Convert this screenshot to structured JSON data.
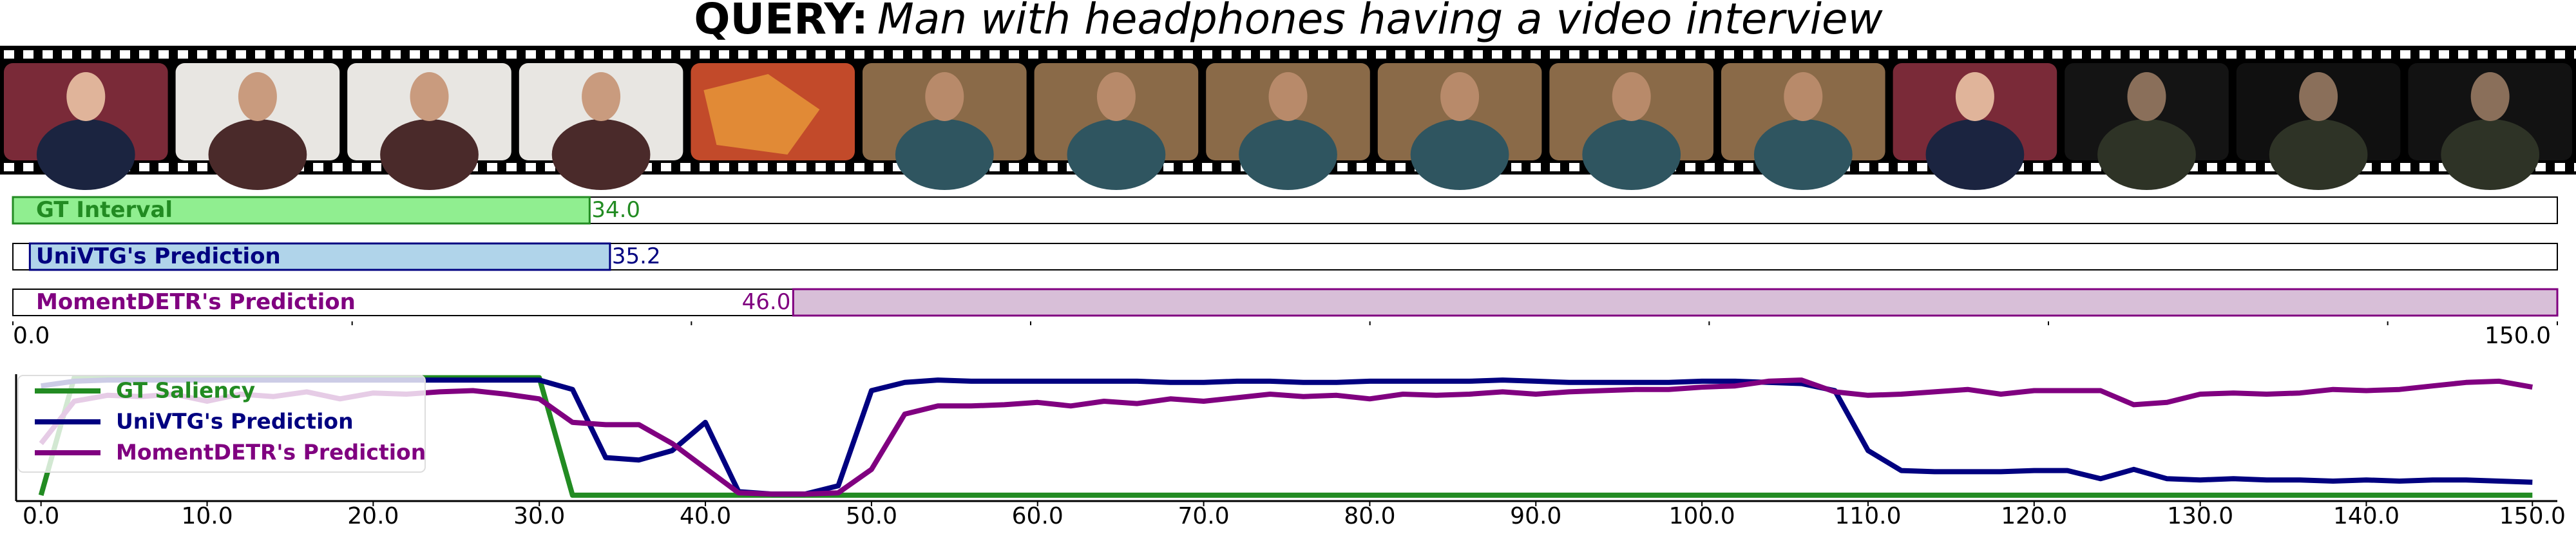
{
  "query": {
    "label": "QUERY:",
    "text": "Man with headphones having a video interview"
  },
  "chart_data": [
    {
      "type": "interval",
      "xlim": [
        0,
        150
      ],
      "xticks": [
        {
          "value": 0,
          "label": "0.0"
        },
        {
          "value": 150,
          "label": "150.0"
        }
      ],
      "minor_xticks": [
        20,
        40,
        60,
        80,
        100,
        120,
        140
      ],
      "series": [
        {
          "name": "GT Interval",
          "color": "#228b22",
          "fill": "#90ee90",
          "start": 0,
          "end": 34,
          "end_label": "34.0"
        },
        {
          "name": "UniVTG's Prediction",
          "color": "#000080",
          "fill": "#b0d4ea",
          "start": 1,
          "end": 35.2
        },
        {
          "name": "MomentDETR's Prediction",
          "color": "#800080",
          "fill": "#d8bfd8",
          "start": 46,
          "end": 150,
          "start_label": "46.0"
        }
      ]
    },
    {
      "type": "line",
      "xlim": [
        -1.5,
        151.5
      ],
      "ylim": [
        -0.05,
        1.03
      ],
      "xticks": [
        {
          "value": 0,
          "label": "0.0"
        },
        {
          "value": 10,
          "label": "10.0"
        },
        {
          "value": 20,
          "label": "20.0"
        },
        {
          "value": 30,
          "label": "30.0"
        },
        {
          "value": 40,
          "label": "40.0"
        },
        {
          "value": 50,
          "label": "50.0"
        },
        {
          "value": 60,
          "label": "60.0"
        },
        {
          "value": 70,
          "label": "70.0"
        },
        {
          "value": 80,
          "label": "80.0"
        },
        {
          "value": 90,
          "label": "90.0"
        },
        {
          "value": 100,
          "label": "100.0"
        },
        {
          "value": 110,
          "label": "110.0"
        },
        {
          "value": 120,
          "label": "120.0"
        },
        {
          "value": 130,
          "label": "130.0"
        },
        {
          "value": 140,
          "label": "140.0"
        },
        {
          "value": 150,
          "label": "150.0"
        }
      ],
      "legend": "upper left",
      "x": [
        0,
        2,
        4,
        6,
        8,
        10,
        12,
        14,
        16,
        18,
        20,
        22,
        24,
        26,
        28,
        30,
        32,
        34,
        36,
        38,
        40,
        42,
        44,
        46,
        48,
        50,
        52,
        54,
        56,
        58,
        60,
        62,
        64,
        66,
        68,
        70,
        72,
        74,
        76,
        78,
        80,
        82,
        84,
        86,
        88,
        90,
        92,
        94,
        96,
        98,
        100,
        102,
        104,
        106,
        108,
        110,
        112,
        114,
        116,
        118,
        120,
        122,
        124,
        126,
        128,
        130,
        132,
        134,
        136,
        138,
        140,
        142,
        144,
        146,
        148,
        150
      ],
      "series": [
        {
          "name": "GT Saliency",
          "color": "#228b22",
          "values": [
            0,
            1,
            1,
            1,
            1,
            1,
            1,
            1,
            1,
            1,
            1,
            1,
            1,
            1,
            1,
            1,
            0,
            0,
            0,
            0,
            0,
            0,
            0,
            0,
            0,
            0,
            0,
            0,
            0,
            0,
            0,
            0,
            0,
            0,
            0,
            0,
            0,
            0,
            0,
            0,
            0,
            0,
            0,
            0,
            0,
            0,
            0,
            0,
            0,
            0,
            0,
            0,
            0,
            0,
            0,
            0,
            0,
            0,
            0,
            0,
            0,
            0,
            0,
            0,
            0,
            0,
            0,
            0,
            0,
            0,
            0,
            0,
            0,
            0,
            0,
            0
          ]
        },
        {
          "name": "UniVTG's Prediction",
          "color": "#000080",
          "values": [
            0.93,
            0.97,
            0.98,
            0.98,
            0.98,
            0.98,
            0.98,
            0.98,
            0.98,
            0.98,
            0.98,
            0.98,
            0.98,
            0.98,
            0.98,
            0.98,
            0.9,
            0.32,
            0.3,
            0.38,
            0.62,
            0.03,
            0.01,
            0.01,
            0.08,
            0.89,
            0.96,
            0.98,
            0.97,
            0.97,
            0.97,
            0.97,
            0.97,
            0.97,
            0.96,
            0.96,
            0.97,
            0.97,
            0.96,
            0.96,
            0.97,
            0.97,
            0.97,
            0.97,
            0.98,
            0.97,
            0.96,
            0.96,
            0.96,
            0.96,
            0.97,
            0.97,
            0.96,
            0.95,
            0.89,
            0.38,
            0.21,
            0.2,
            0.2,
            0.2,
            0.21,
            0.21,
            0.14,
            0.22,
            0.14,
            0.13,
            0.14,
            0.13,
            0.13,
            0.12,
            0.13,
            0.12,
            0.13,
            0.13,
            0.12,
            0.11
          ]
        },
        {
          "name": "MomentDETR's Prediction",
          "color": "#800080",
          "values": [
            0.44,
            0.8,
            0.85,
            0.84,
            0.86,
            0.8,
            0.86,
            0.84,
            0.88,
            0.82,
            0.87,
            0.86,
            0.88,
            0.89,
            0.86,
            0.82,
            0.62,
            0.6,
            0.6,
            0.44,
            0.23,
            0.02,
            0.01,
            0.01,
            0.02,
            0.22,
            0.69,
            0.76,
            0.76,
            0.77,
            0.79,
            0.76,
            0.8,
            0.78,
            0.82,
            0.8,
            0.83,
            0.86,
            0.84,
            0.85,
            0.82,
            0.86,
            0.85,
            0.86,
            0.88,
            0.86,
            0.88,
            0.89,
            0.9,
            0.9,
            0.92,
            0.93,
            0.97,
            0.98,
            0.88,
            0.85,
            0.86,
            0.88,
            0.9,
            0.86,
            0.89,
            0.89,
            0.89,
            0.77,
            0.79,
            0.86,
            0.87,
            0.86,
            0.87,
            0.9,
            0.89,
            0.9,
            0.93,
            0.96,
            0.97,
            0.92
          ]
        }
      ]
    }
  ]
}
